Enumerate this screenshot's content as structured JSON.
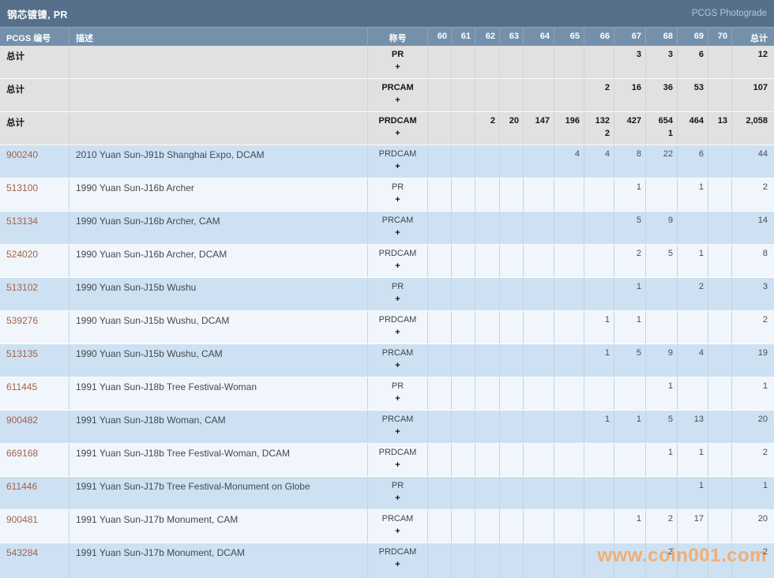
{
  "topbar": {
    "title": "钢芯镀镍, PR",
    "photograde_link": "PCGS Photograde"
  },
  "table": {
    "headers": {
      "pcgs": "PCGS 编号",
      "desc": "描述",
      "designation": "称号",
      "grades": [
        "60",
        "61",
        "62",
        "63",
        "64",
        "65",
        "66",
        "67",
        "68",
        "69",
        "70"
      ],
      "total": "总计"
    },
    "plus_symbol": "+",
    "rows": [
      {
        "type": "summary",
        "shade": "gray",
        "pcgs": "总计",
        "desc": "",
        "designation": "PR",
        "grades": [
          "",
          "",
          "",
          "",
          "",
          "",
          "",
          "3",
          "3",
          "6",
          ""
        ],
        "grades_plus": [
          "",
          "",
          "",
          "",
          "",
          "",
          "",
          "",
          "",
          "",
          ""
        ],
        "total": "12"
      },
      {
        "type": "summary",
        "shade": "gray",
        "pcgs": "总计",
        "desc": "",
        "designation": "PRCAM",
        "grades": [
          "",
          "",
          "",
          "",
          "",
          "",
          "2",
          "16",
          "36",
          "53",
          ""
        ],
        "grades_plus": [
          "",
          "",
          "",
          "",
          "",
          "",
          "",
          "",
          "",
          "",
          ""
        ],
        "total": "107"
      },
      {
        "type": "summary",
        "shade": "gray",
        "pcgs": "总计",
        "desc": "",
        "designation": "PRDCAM",
        "grades": [
          "",
          "",
          "2",
          "20",
          "147",
          "196",
          "132",
          "427",
          "654",
          "464",
          "13"
        ],
        "grades_plus": [
          "",
          "",
          "",
          "",
          "",
          "",
          "2",
          "",
          "1",
          "",
          ""
        ],
        "total": "2,058"
      },
      {
        "type": "coin",
        "shade": "blue",
        "pcgs": "900240",
        "desc": "2010 Yuan Sun-J91b Shanghai Expo, DCAM",
        "designation": "PRDCAM",
        "grades": [
          "",
          "",
          "",
          "",
          "",
          "4",
          "4",
          "8",
          "22",
          "6",
          ""
        ],
        "grades_plus": [
          "",
          "",
          "",
          "",
          "",
          "",
          "",
          "",
          "",
          "",
          ""
        ],
        "total": "44"
      },
      {
        "type": "coin",
        "shade": "light",
        "pcgs": "513100",
        "desc": "1990 Yuan Sun-J16b Archer",
        "designation": "PR",
        "grades": [
          "",
          "",
          "",
          "",
          "",
          "",
          "",
          "1",
          "",
          "1",
          ""
        ],
        "grades_plus": [
          "",
          "",
          "",
          "",
          "",
          "",
          "",
          "",
          "",
          "",
          ""
        ],
        "total": "2"
      },
      {
        "type": "coin",
        "shade": "blue",
        "pcgs": "513134",
        "desc": "1990 Yuan Sun-J16b Archer, CAM",
        "designation": "PRCAM",
        "grades": [
          "",
          "",
          "",
          "",
          "",
          "",
          "",
          "5",
          "9",
          "",
          ""
        ],
        "grades_plus": [
          "",
          "",
          "",
          "",
          "",
          "",
          "",
          "",
          "",
          "",
          ""
        ],
        "total": "14"
      },
      {
        "type": "coin",
        "shade": "light",
        "pcgs": "524020",
        "desc": "1990 Yuan Sun-J16b Archer, DCAM",
        "designation": "PRDCAM",
        "grades": [
          "",
          "",
          "",
          "",
          "",
          "",
          "",
          "2",
          "5",
          "1",
          ""
        ],
        "grades_plus": [
          "",
          "",
          "",
          "",
          "",
          "",
          "",
          "",
          "",
          "",
          ""
        ],
        "total": "8"
      },
      {
        "type": "coin",
        "shade": "blue",
        "pcgs": "513102",
        "desc": "1990 Yuan Sun-J15b Wushu",
        "designation": "PR",
        "grades": [
          "",
          "",
          "",
          "",
          "",
          "",
          "",
          "1",
          "",
          "2",
          ""
        ],
        "grades_plus": [
          "",
          "",
          "",
          "",
          "",
          "",
          "",
          "",
          "",
          "",
          ""
        ],
        "total": "3"
      },
      {
        "type": "coin",
        "shade": "light",
        "pcgs": "539276",
        "desc": "1990 Yuan Sun-J15b Wushu, DCAM",
        "designation": "PRDCAM",
        "grades": [
          "",
          "",
          "",
          "",
          "",
          "",
          "1",
          "1",
          "",
          "",
          ""
        ],
        "grades_plus": [
          "",
          "",
          "",
          "",
          "",
          "",
          "",
          "",
          "",
          "",
          ""
        ],
        "total": "2"
      },
      {
        "type": "coin",
        "shade": "blue",
        "pcgs": "513135",
        "desc": "1990 Yuan Sun-J15b Wushu, CAM",
        "designation": "PRCAM",
        "grades": [
          "",
          "",
          "",
          "",
          "",
          "",
          "1",
          "5",
          "9",
          "4",
          ""
        ],
        "grades_plus": [
          "",
          "",
          "",
          "",
          "",
          "",
          "",
          "",
          "",
          "",
          ""
        ],
        "total": "19"
      },
      {
        "type": "coin",
        "shade": "light",
        "pcgs": "611445",
        "desc": "1991 Yuan Sun-J18b Tree Festival-Woman",
        "designation": "PR",
        "grades": [
          "",
          "",
          "",
          "",
          "",
          "",
          "",
          "",
          "1",
          "",
          ""
        ],
        "grades_plus": [
          "",
          "",
          "",
          "",
          "",
          "",
          "",
          "",
          "",
          "",
          ""
        ],
        "total": "1"
      },
      {
        "type": "coin",
        "shade": "blue",
        "pcgs": "900482",
        "desc": "1991 Yuan Sun-J18b Woman, CAM",
        "designation": "PRCAM",
        "grades": [
          "",
          "",
          "",
          "",
          "",
          "",
          "1",
          "1",
          "5",
          "13",
          ""
        ],
        "grades_plus": [
          "",
          "",
          "",
          "",
          "",
          "",
          "",
          "",
          "",
          "",
          ""
        ],
        "total": "20"
      },
      {
        "type": "coin",
        "shade": "light",
        "pcgs": "669168",
        "desc": "1991 Yuan Sun-J18b Tree Festival-Woman, DCAM",
        "designation": "PRDCAM",
        "grades": [
          "",
          "",
          "",
          "",
          "",
          "",
          "",
          "",
          "1",
          "1",
          ""
        ],
        "grades_plus": [
          "",
          "",
          "",
          "",
          "",
          "",
          "",
          "",
          "",
          "",
          ""
        ],
        "total": "2"
      },
      {
        "type": "coin",
        "shade": "blue",
        "pcgs": "611446",
        "desc": "1991 Yuan Sun-J17b Tree Festival-Monument on Globe",
        "designation": "PR",
        "grades": [
          "",
          "",
          "",
          "",
          "",
          "",
          "",
          "",
          "",
          "1",
          ""
        ],
        "grades_plus": [
          "",
          "",
          "",
          "",
          "",
          "",
          "",
          "",
          "",
          "",
          ""
        ],
        "total": "1"
      },
      {
        "type": "coin",
        "shade": "light",
        "pcgs": "900481",
        "desc": "1991 Yuan Sun-J17b Monument, CAM",
        "designation": "PRCAM",
        "grades": [
          "",
          "",
          "",
          "",
          "",
          "",
          "",
          "1",
          "2",
          "17",
          ""
        ],
        "grades_plus": [
          "",
          "",
          "",
          "",
          "",
          "",
          "",
          "",
          "",
          "",
          ""
        ],
        "total": "20"
      },
      {
        "type": "coin",
        "shade": "blue",
        "pcgs": "543284",
        "desc": "1991 Yuan Sun-J17b Monument, DCAM",
        "designation": "PRDCAM",
        "grades": [
          "",
          "",
          "",
          "",
          "",
          "",
          "",
          "",
          "2",
          "",
          ""
        ],
        "grades_plus": [
          "",
          "",
          "",
          "",
          "",
          "",
          "",
          "",
          "",
          "",
          ""
        ],
        "total": "2"
      }
    ]
  },
  "watermark": {
    "text": "www.coin001.com"
  },
  "colors": {
    "topbar_bg": "#566f8a",
    "table_header_bg": "#7590ab",
    "row_gray": "#e1e1e1",
    "row_blue": "#cde1f2",
    "row_light": "#f0f6fb",
    "pcgs_link": "#a5614c",
    "photograde_link": "#a9c9e3",
    "watermark": "#f2ae73"
  }
}
